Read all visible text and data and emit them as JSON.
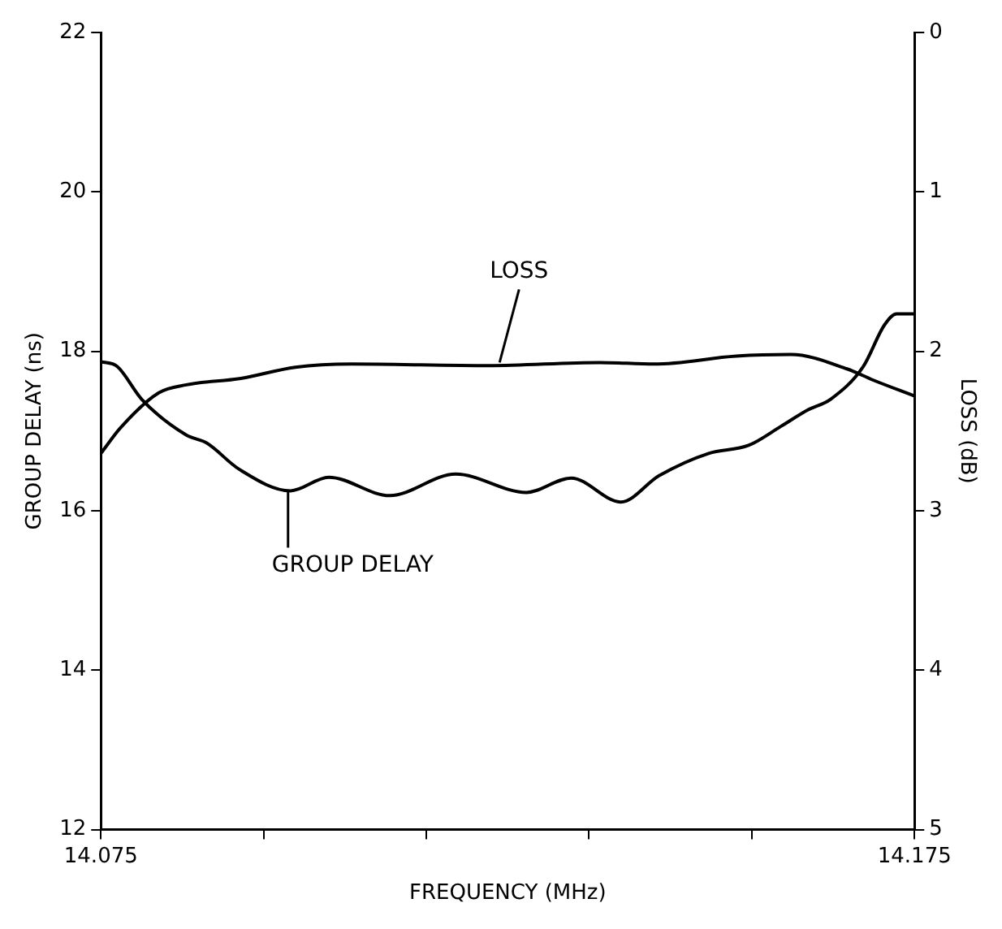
{
  "chart_data": {
    "type": "line",
    "xlabel": "FREQUENCY (MHz)",
    "ylabel": "GROUP DELAY (ns)",
    "y2label": "LOSS (dB)",
    "xlim": [
      14.075,
      14.175
    ],
    "xticks": [
      14.075,
      {
        "value": 14.095,
        "label": null
      },
      {
        "value": 14.115,
        "label": null
      },
      {
        "value": 14.135,
        "label": null
      },
      {
        "value": 14.155,
        "label": null
      },
      14.175
    ],
    "ylim": [
      12,
      22
    ],
    "yticks": [
      12,
      14,
      16,
      18,
      20,
      22
    ],
    "y2lim": [
      5,
      0
    ],
    "y2ticks": [
      0,
      1,
      2,
      3,
      4,
      5
    ],
    "series": [
      {
        "color": "#000000",
        "x": [
          14.075,
          14.077,
          14.08,
          14.0855,
          14.088,
          14.092,
          14.0983,
          14.103,
          14.1105,
          14.1186,
          14.1273,
          14.1328,
          14.1389,
          14.1436,
          14.1497,
          14.1546,
          14.1586,
          14.1618,
          14.1647,
          14.1687,
          14.1713,
          14.1728,
          14.175
        ],
        "values": [
          17.87,
          17.81,
          17.4,
          16.95,
          16.85,
          16.52,
          16.25,
          16.42,
          16.19,
          16.46,
          16.23,
          16.41,
          16.11,
          16.44,
          16.72,
          16.82,
          17.06,
          17.26,
          17.4,
          17.81,
          18.33,
          18.47,
          18.47
        ]
      },
      {
        "color": "#000000",
        "axis": "y2",
        "x": [
          14.075,
          14.0774,
          14.0821,
          14.0855,
          14.0922,
          14.0989,
          14.1058,
          14.1227,
          14.1363,
          14.143,
          14.1531,
          14.1598,
          14.1667,
          14.1699,
          14.175
        ],
        "values": [
          2.64,
          2.48,
          2.26,
          2.21,
          2.17,
          2.1,
          2.08,
          2.09,
          2.07,
          2.08,
          2.03,
          2.02,
          2.11,
          2.18,
          2.28
        ]
      }
    ],
    "annotations": [
      {
        "text": "LOSS",
        "x": 14.124,
        "y": 17.86
      },
      {
        "text": "GROUP DELAY",
        "x": 14.098,
        "y": 16.25
      }
    ],
    "marker": "none",
    "legend": false
  }
}
